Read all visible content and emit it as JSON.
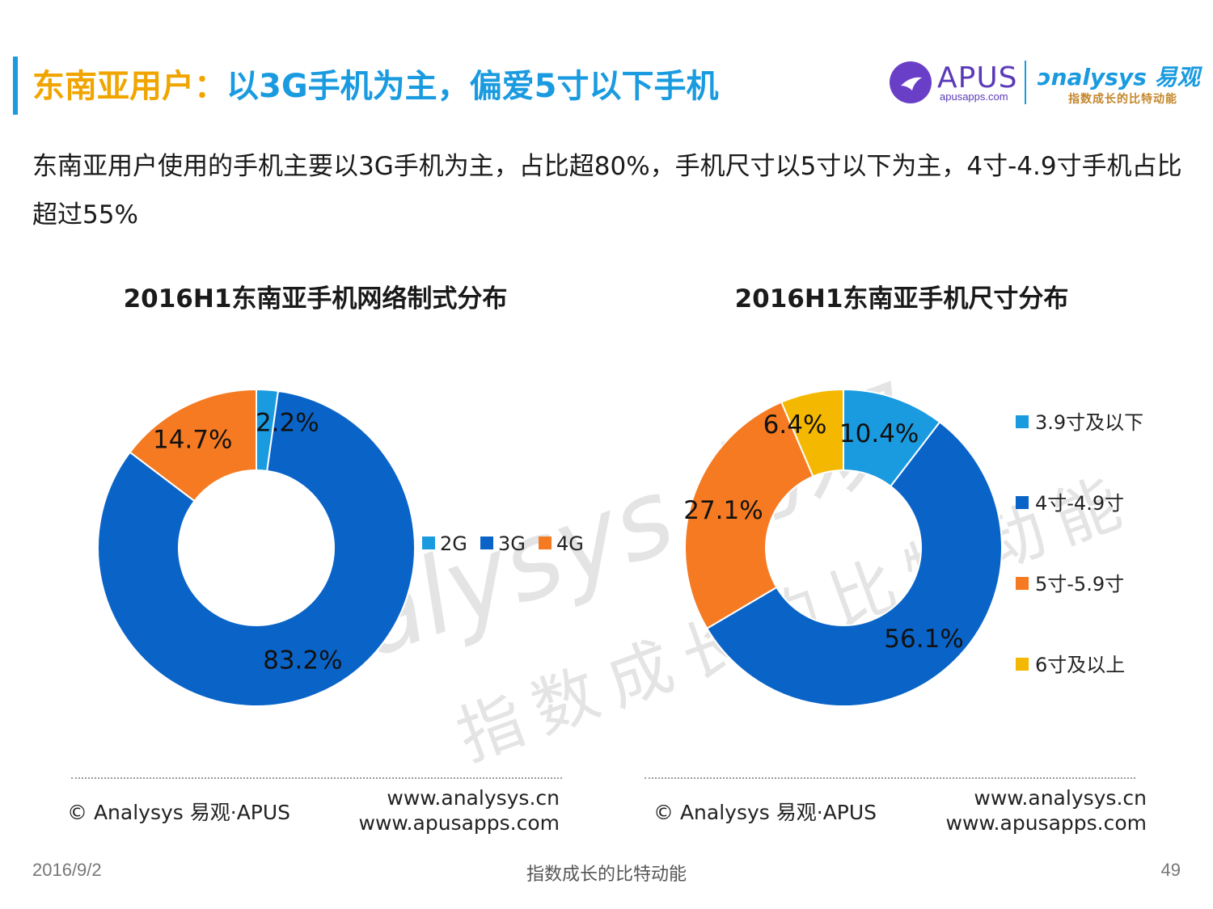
{
  "header": {
    "title_part1": "东南亚用户：",
    "title_part2": "以3G手机为主，偏爱5寸以下手机",
    "accent_color": "#1a9be0",
    "highlight_color": "#f0a500"
  },
  "logos": {
    "apus_name": "APUS",
    "apus_url": "apusapps.com",
    "analysys_name": "nalysys 易观",
    "analysys_slogan": "指数成长的比特动能"
  },
  "summary": "东南亚用户使用的手机主要以3G手机为主，占比超80%，手机尺寸以5寸以下为主，4寸-4.9寸手机占比超过55%",
  "watermark": {
    "main": "nalysys 易观",
    "sub": "指数成长的比特动能"
  },
  "chart_data": [
    {
      "type": "pie",
      "style": "donut",
      "title": "2016H1东南亚手机网络制式分布",
      "categories": [
        "2G",
        "3G",
        "4G"
      ],
      "values": [
        2.2,
        83.2,
        14.7
      ],
      "labels": [
        "2.2%",
        "83.2%",
        "14.7%"
      ],
      "colors": [
        "#1a9be0",
        "#0a64c8",
        "#f57a22"
      ],
      "legend_placement": "right"
    },
    {
      "type": "pie",
      "style": "donut",
      "title": "2016H1东南亚手机尺寸分布",
      "categories": [
        "3.9寸及以下",
        "4寸-4.9寸",
        "5寸-5.9寸",
        "6寸及以上"
      ],
      "values": [
        10.4,
        56.1,
        27.1,
        6.4
      ],
      "labels": [
        "10.4%",
        "56.1%",
        "27.1%",
        "6.4%"
      ],
      "colors": [
        "#1a9be0",
        "#0a64c8",
        "#f57a22",
        "#f5b800"
      ],
      "legend_placement": "right"
    }
  ],
  "footer_boxes": [
    {
      "copyright": "© Analysys 易观·APUS",
      "url1": "www.analysys.cn",
      "url2": "www.apusapps.com"
    },
    {
      "copyright": "© Analysys 易观·APUS",
      "url1": "www.analysys.cn",
      "url2": "www.apusapps.com"
    }
  ],
  "footer": {
    "date": "2016/9/2",
    "slogan": "指数成长的比特动能",
    "page": "49"
  }
}
